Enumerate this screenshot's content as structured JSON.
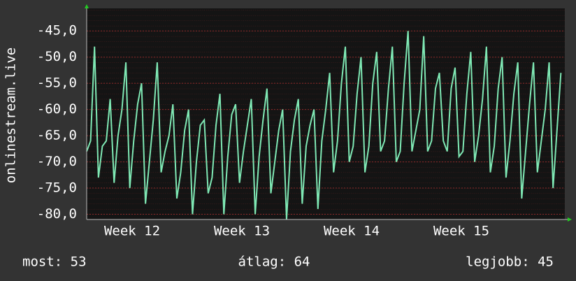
{
  "chart_data": {
    "type": "line",
    "ylabel": "onlinestream.live",
    "color": "#7fe8b4",
    "grid": true,
    "ylim": [
      -81,
      -40.7
    ],
    "yticks": [
      {
        "value": -45,
        "label": "-45,0"
      },
      {
        "value": -50,
        "label": "-50,0"
      },
      {
        "value": -55,
        "label": "-55,0"
      },
      {
        "value": -60,
        "label": "-60,0"
      },
      {
        "value": -65,
        "label": "-65,0"
      },
      {
        "value": -70,
        "label": "-70,0"
      },
      {
        "value": -75,
        "label": "-75,0"
      },
      {
        "value": -80,
        "label": "-80,0"
      }
    ],
    "xlim": [
      0,
      30.5
    ],
    "xticks": [
      {
        "value": 2.9,
        "label": "Week 12"
      },
      {
        "value": 9.9,
        "label": "Week 13"
      },
      {
        "value": 16.9,
        "label": "Week 14"
      },
      {
        "value": 23.9,
        "label": "Week 15"
      }
    ],
    "x": [
      0,
      0.25,
      0.5,
      0.75,
      1,
      1.25,
      1.5,
      1.75,
      2,
      2.25,
      2.5,
      2.75,
      3,
      3.25,
      3.5,
      3.75,
      4,
      4.25,
      4.5,
      4.75,
      5,
      5.25,
      5.5,
      5.75,
      6,
      6.25,
      6.5,
      6.75,
      7,
      7.25,
      7.5,
      7.75,
      8,
      8.25,
      8.5,
      8.75,
      9,
      9.25,
      9.5,
      9.75,
      10,
      10.25,
      10.5,
      10.75,
      11,
      11.25,
      11.5,
      11.75,
      12,
      12.25,
      12.5,
      12.75,
      13,
      13.25,
      13.5,
      13.75,
      14,
      14.25,
      14.5,
      14.75,
      15,
      15.25,
      15.5,
      15.75,
      16,
      16.25,
      16.5,
      16.75,
      17,
      17.25,
      17.5,
      17.75,
      18,
      18.25,
      18.5,
      18.75,
      19,
      19.25,
      19.5,
      19.75,
      20,
      20.25,
      20.5,
      20.75,
      21,
      21.25,
      21.5,
      21.75,
      22,
      22.25,
      22.5,
      22.75,
      23,
      23.25,
      23.5,
      23.75,
      24,
      24.25,
      24.5,
      24.75,
      25,
      25.25,
      25.5,
      25.75,
      26,
      26.25,
      26.5,
      26.75,
      27,
      27.25,
      27.5,
      27.75,
      28,
      28.25,
      28.5,
      28.75,
      29,
      29.25,
      29.5,
      29.75,
      30,
      30.25
    ],
    "values": [
      -68,
      -66,
      -48,
      -73,
      -67,
      -66,
      -58,
      -74,
      -65,
      -60,
      -51,
      -75,
      -66,
      -59,
      -55,
      -78,
      -70,
      -62,
      -51,
      -72,
      -68,
      -65,
      -59,
      -77,
      -72,
      -64,
      -60,
      -80,
      -70,
      -63,
      -62,
      -76,
      -73,
      -63,
      -57,
      -80,
      -69,
      -61,
      -59,
      -74,
      -68,
      -63,
      -58,
      -80,
      -69,
      -62,
      -56,
      -76,
      -70,
      -64,
      -60,
      -81,
      -68,
      -62,
      -58,
      -78,
      -67,
      -63,
      -60,
      -79,
      -66,
      -60,
      -53,
      -72,
      -66,
      -55,
      -48,
      -70,
      -67,
      -57,
      -50,
      -72,
      -67,
      -55,
      -49,
      -68,
      -66,
      -56,
      -48,
      -70,
      -68,
      -55,
      -45,
      -68,
      -64,
      -60,
      -46,
      -68,
      -66,
      -56,
      -53,
      -66,
      -68,
      -56,
      -52,
      -69,
      -68,
      -57,
      -49,
      -70,
      -65,
      -58,
      -48,
      -72,
      -67,
      -56,
      -50,
      -73,
      -66,
      -57,
      -51,
      -77,
      -68,
      -59,
      -51,
      -72,
      -66,
      -60,
      -51,
      -75,
      -64,
      -53
    ],
    "footer": {
      "now": "most: 53",
      "avg": "átlag: 64",
      "best": "legjobb: 45"
    }
  }
}
